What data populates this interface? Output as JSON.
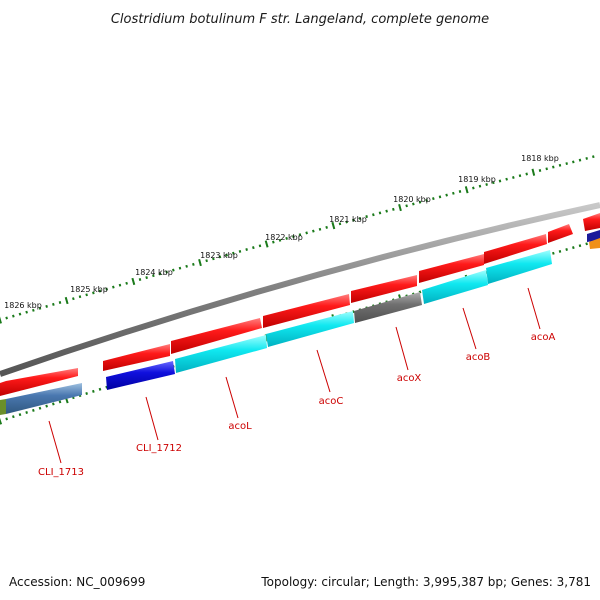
{
  "title": "Clostridium botulinum F str. Langeland, complete genome",
  "footer": {
    "accession": "Accession: NC_009699",
    "summary": "Topology: circular; Length: 3,995,387 bp; Genes: 3,781"
  },
  "kbp_ticks": [
    {
      "label": "1818 kbp"
    },
    {
      "label": "1819 kbp"
    },
    {
      "label": "1820 kbp"
    },
    {
      "label": "1821 kbp"
    },
    {
      "label": "1822 kbp"
    },
    {
      "label": "1823 kbp"
    },
    {
      "label": "1824 kbp"
    },
    {
      "label": "1825 kbp"
    },
    {
      "label": "1826 kbp"
    }
  ],
  "gene_labels": [
    {
      "name": "CLI_1713"
    },
    {
      "name": "CLI_1712"
    },
    {
      "name": "acoL"
    },
    {
      "name": "acoC"
    },
    {
      "name": "acoX"
    },
    {
      "name": "acoB"
    },
    {
      "name": "acoA"
    }
  ],
  "colors": {
    "backbone": "#808080",
    "cds": "#ee1111",
    "ticks": "#1a7a1a",
    "label": "#cc0000",
    "blue": "#1010dd",
    "cyan": "#10e8f0",
    "grey": "#707070",
    "steel": "#4a78b0"
  }
}
